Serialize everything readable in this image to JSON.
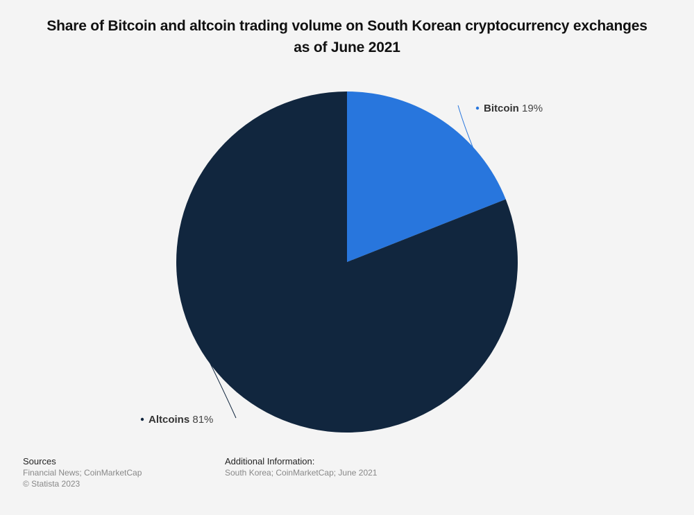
{
  "title": "Share of Bitcoin and altcoin trading volume on South Korean cryptocurrency exchanges as of June 2021",
  "chart_data": {
    "type": "pie",
    "title": "Share of Bitcoin and altcoin trading volume on South Korean cryptocurrency exchanges as of June 2021",
    "unit": "%",
    "slices": [
      {
        "label": "Bitcoin",
        "value": 19,
        "display": "19%",
        "color": "#2876dd"
      },
      {
        "label": "Altcoins",
        "value": 81,
        "display": "81%",
        "color": "#11263e"
      }
    ]
  },
  "footer": {
    "sources_heading": "Sources",
    "sources_text": "Financial News; CoinMarketCap",
    "copyright": "© Statista 2023",
    "additional_heading": "Additional Information:",
    "additional_text": "South Korea; CoinMarketCap; June 2021"
  }
}
